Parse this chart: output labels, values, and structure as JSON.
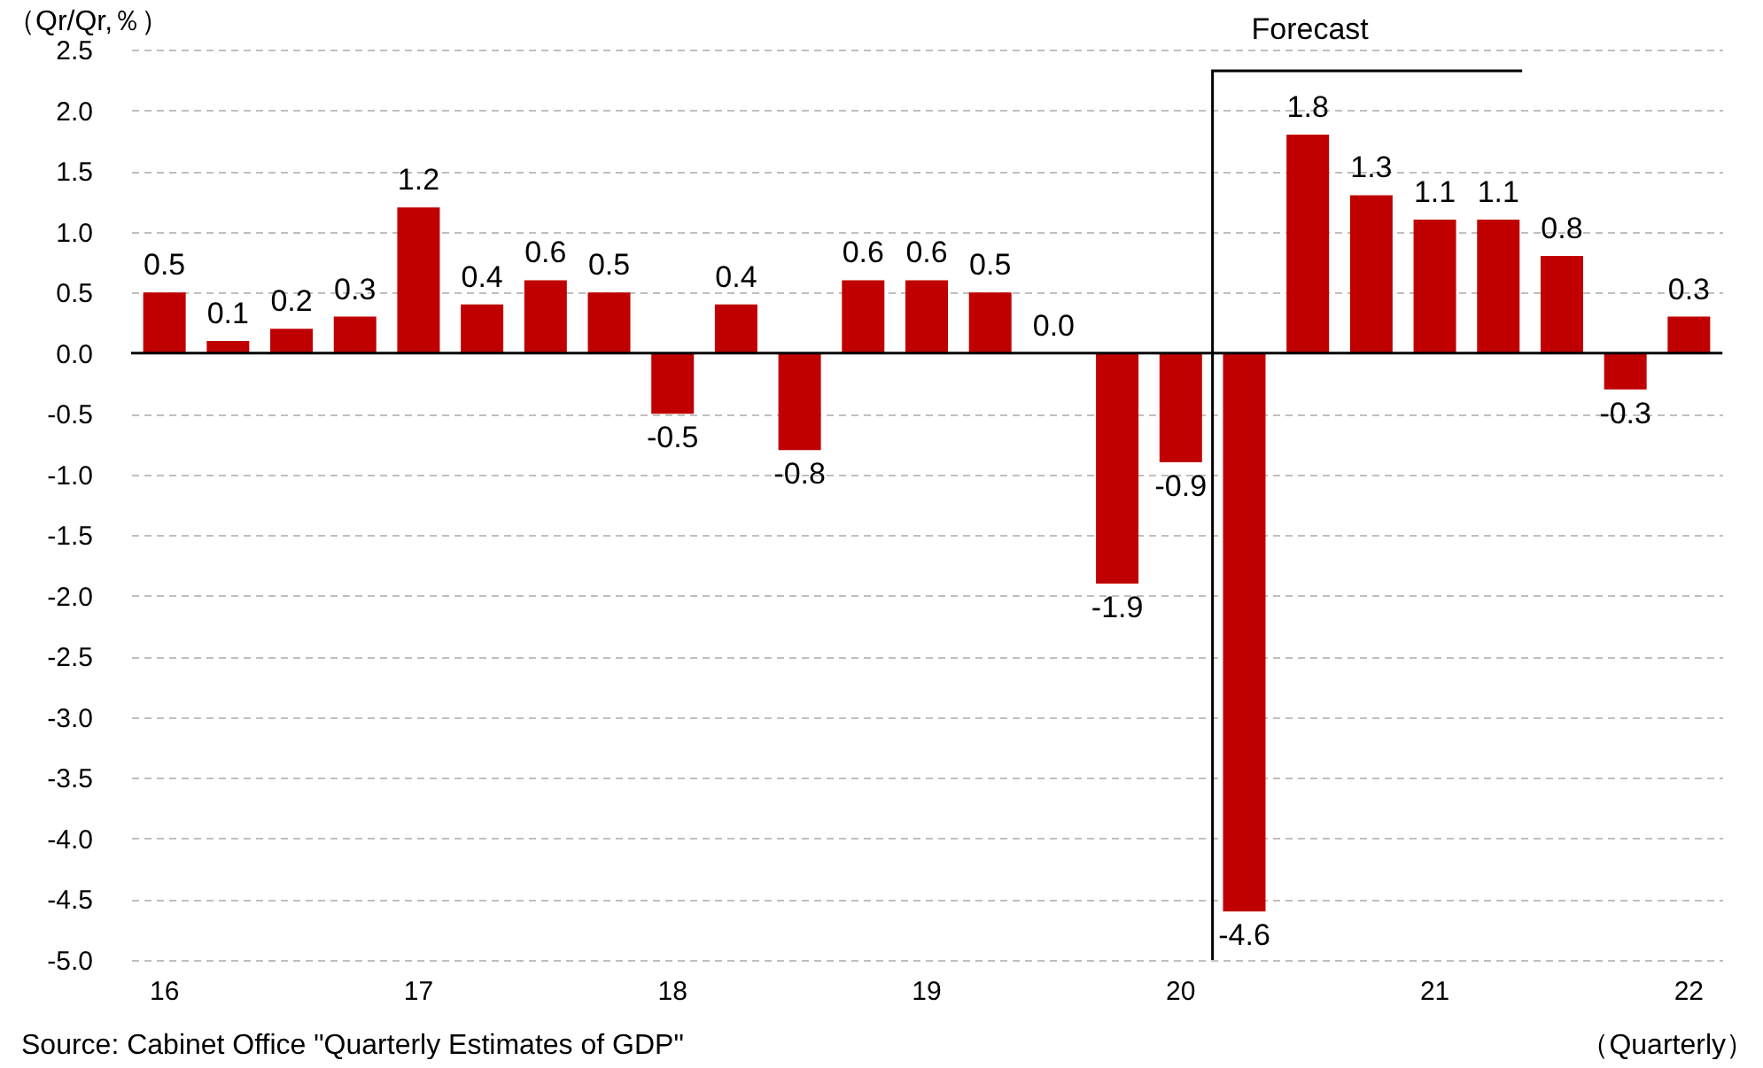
{
  "chart_data": {
    "type": "bar",
    "ylabel": "（Qr/Qr,％）",
    "xlabel": "（Quarterly）",
    "categories": [
      "16",
      null,
      null,
      null,
      "17",
      null,
      null,
      null,
      "18",
      null,
      null,
      null,
      "19",
      null,
      null,
      null,
      "20",
      null,
      null,
      null,
      "21",
      null,
      null,
      null,
      "22"
    ],
    "series": [
      {
        "color": "#c00000",
        "values": [
          0.5,
          0.1,
          0.2,
          0.3,
          1.2,
          0.4,
          0.6,
          0.5,
          -0.5,
          0.4,
          -0.8,
          0.6,
          0.6,
          0.5,
          0.0,
          -1.9,
          -0.9,
          -4.6,
          1.8,
          1.3,
          1.1,
          1.1,
          0.8,
          -0.3,
          0.3
        ],
        "value_labels": [
          "0.5",
          "0.1",
          "0.2",
          "0.3",
          "1.2",
          "0.4",
          "0.6",
          "0.5",
          "-0.5",
          "0.4",
          "-0.8",
          "0.6",
          "0.6",
          "0.5",
          "0.0",
          "-1.9",
          "-0.9",
          "-4.6",
          "1.8",
          "1.3",
          "1.1",
          "1.1",
          "0.8",
          "-0.3",
          "0.3"
        ]
      }
    ],
    "ylim": [
      -5,
      2.5
    ],
    "yticks": [
      {
        "value": 2.5,
        "label": "2.5"
      },
      {
        "value": 2,
        "label": "2.0"
      },
      {
        "value": 1.5,
        "label": "1.5"
      },
      {
        "value": 1,
        "label": "1.0"
      },
      {
        "value": 0.5,
        "label": "0.5"
      },
      {
        "value": 0,
        "label": "0.0"
      },
      {
        "value": -0.5,
        "label": "-0.5"
      },
      {
        "value": -1,
        "label": "-1.0"
      },
      {
        "value": -1.5,
        "label": "-1.5"
      },
      {
        "value": -2,
        "label": "-2.0"
      },
      {
        "value": -2.5,
        "label": "-2.5"
      },
      {
        "value": -3,
        "label": "-3.0"
      },
      {
        "value": -3.5,
        "label": "-3.5"
      },
      {
        "value": -4,
        "label": "-4.0"
      },
      {
        "value": -4.5,
        "label": "-4.5"
      },
      {
        "value": -5,
        "label": "-5.0"
      }
    ],
    "grid": "y",
    "annotations": [
      "Forecast",
      "Source: Cabinet Office \"Quarterly Estimates of GDP\""
    ]
  }
}
